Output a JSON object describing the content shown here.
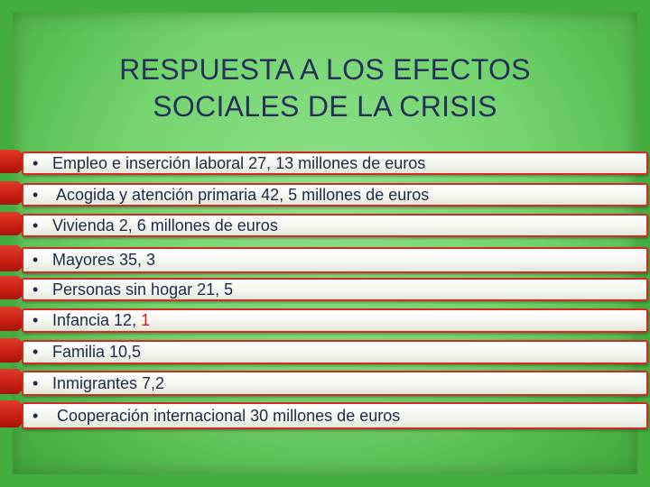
{
  "slide": {
    "title_line1": "RESPUESTA A LOS EFECTOS",
    "title_line2": "SOCIALES DE LA CRISIS",
    "bullet_glyph": "•",
    "items": [
      {
        "text": "Empleo e inserción laboral 27, 13 millones de euros"
      },
      {
        "text": " Acogida y atención primaria 42, 5 millones de euros"
      },
      {
        "text": "Vivienda 2, 6 millones de euros"
      },
      {
        "text": "Mayores 35, 3"
      },
      {
        "text": "Personas sin hogar 21, 5"
      },
      {
        "text": "Infancia 12, ",
        "highlight": "1"
      },
      {
        "text": "Familia 10,5"
      },
      {
        "text": "Inmigrantes 7,2"
      },
      {
        "text": " Cooperación internacional 30 millones de euros"
      }
    ]
  },
  "colors": {
    "background": "#74d46e",
    "frame": "#44ad40",
    "title": "#26325a",
    "arrow": "#c81e14",
    "highlight": "#d11d1d"
  }
}
